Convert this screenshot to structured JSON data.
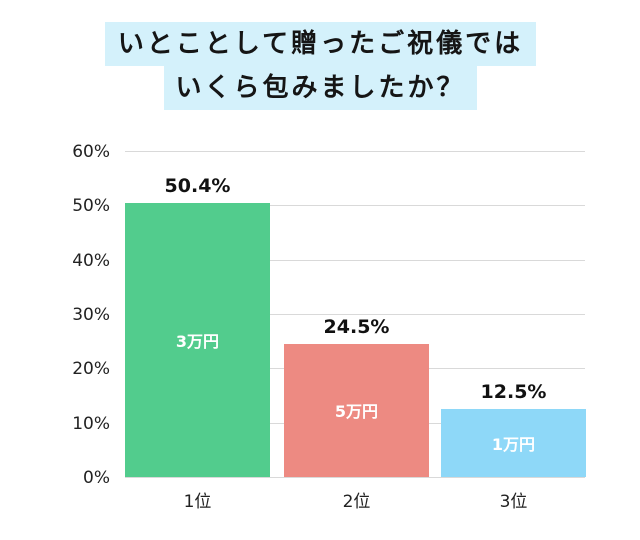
{
  "title": {
    "line1": "いとことして贈ったご祝儀では",
    "line2": "いくら包みましたか？"
  },
  "colors": {
    "title_bg": "#d4f1fb",
    "bar1": "#52cc8d",
    "bar2": "#ed8a82",
    "bar3": "#8ed8f8",
    "grid": "#d9d9d9"
  },
  "chart_data": {
    "type": "bar",
    "title": "いとことして贈ったご祝儀ではいくら包みましたか？",
    "categories": [
      "1位",
      "2位",
      "3位"
    ],
    "values": [
      50.4,
      24.5,
      12.5
    ],
    "value_labels": [
      "50.4%",
      "24.5%",
      "12.5%"
    ],
    "bar_labels": [
      "3万円",
      "5万円",
      "1万円"
    ],
    "xlabel": "",
    "ylabel": "",
    "ylim": [
      0,
      60
    ],
    "yticks": [
      "0%",
      "10%",
      "20%",
      "30%",
      "40%",
      "50%",
      "60%"
    ],
    "grid": true,
    "legend": "none"
  }
}
